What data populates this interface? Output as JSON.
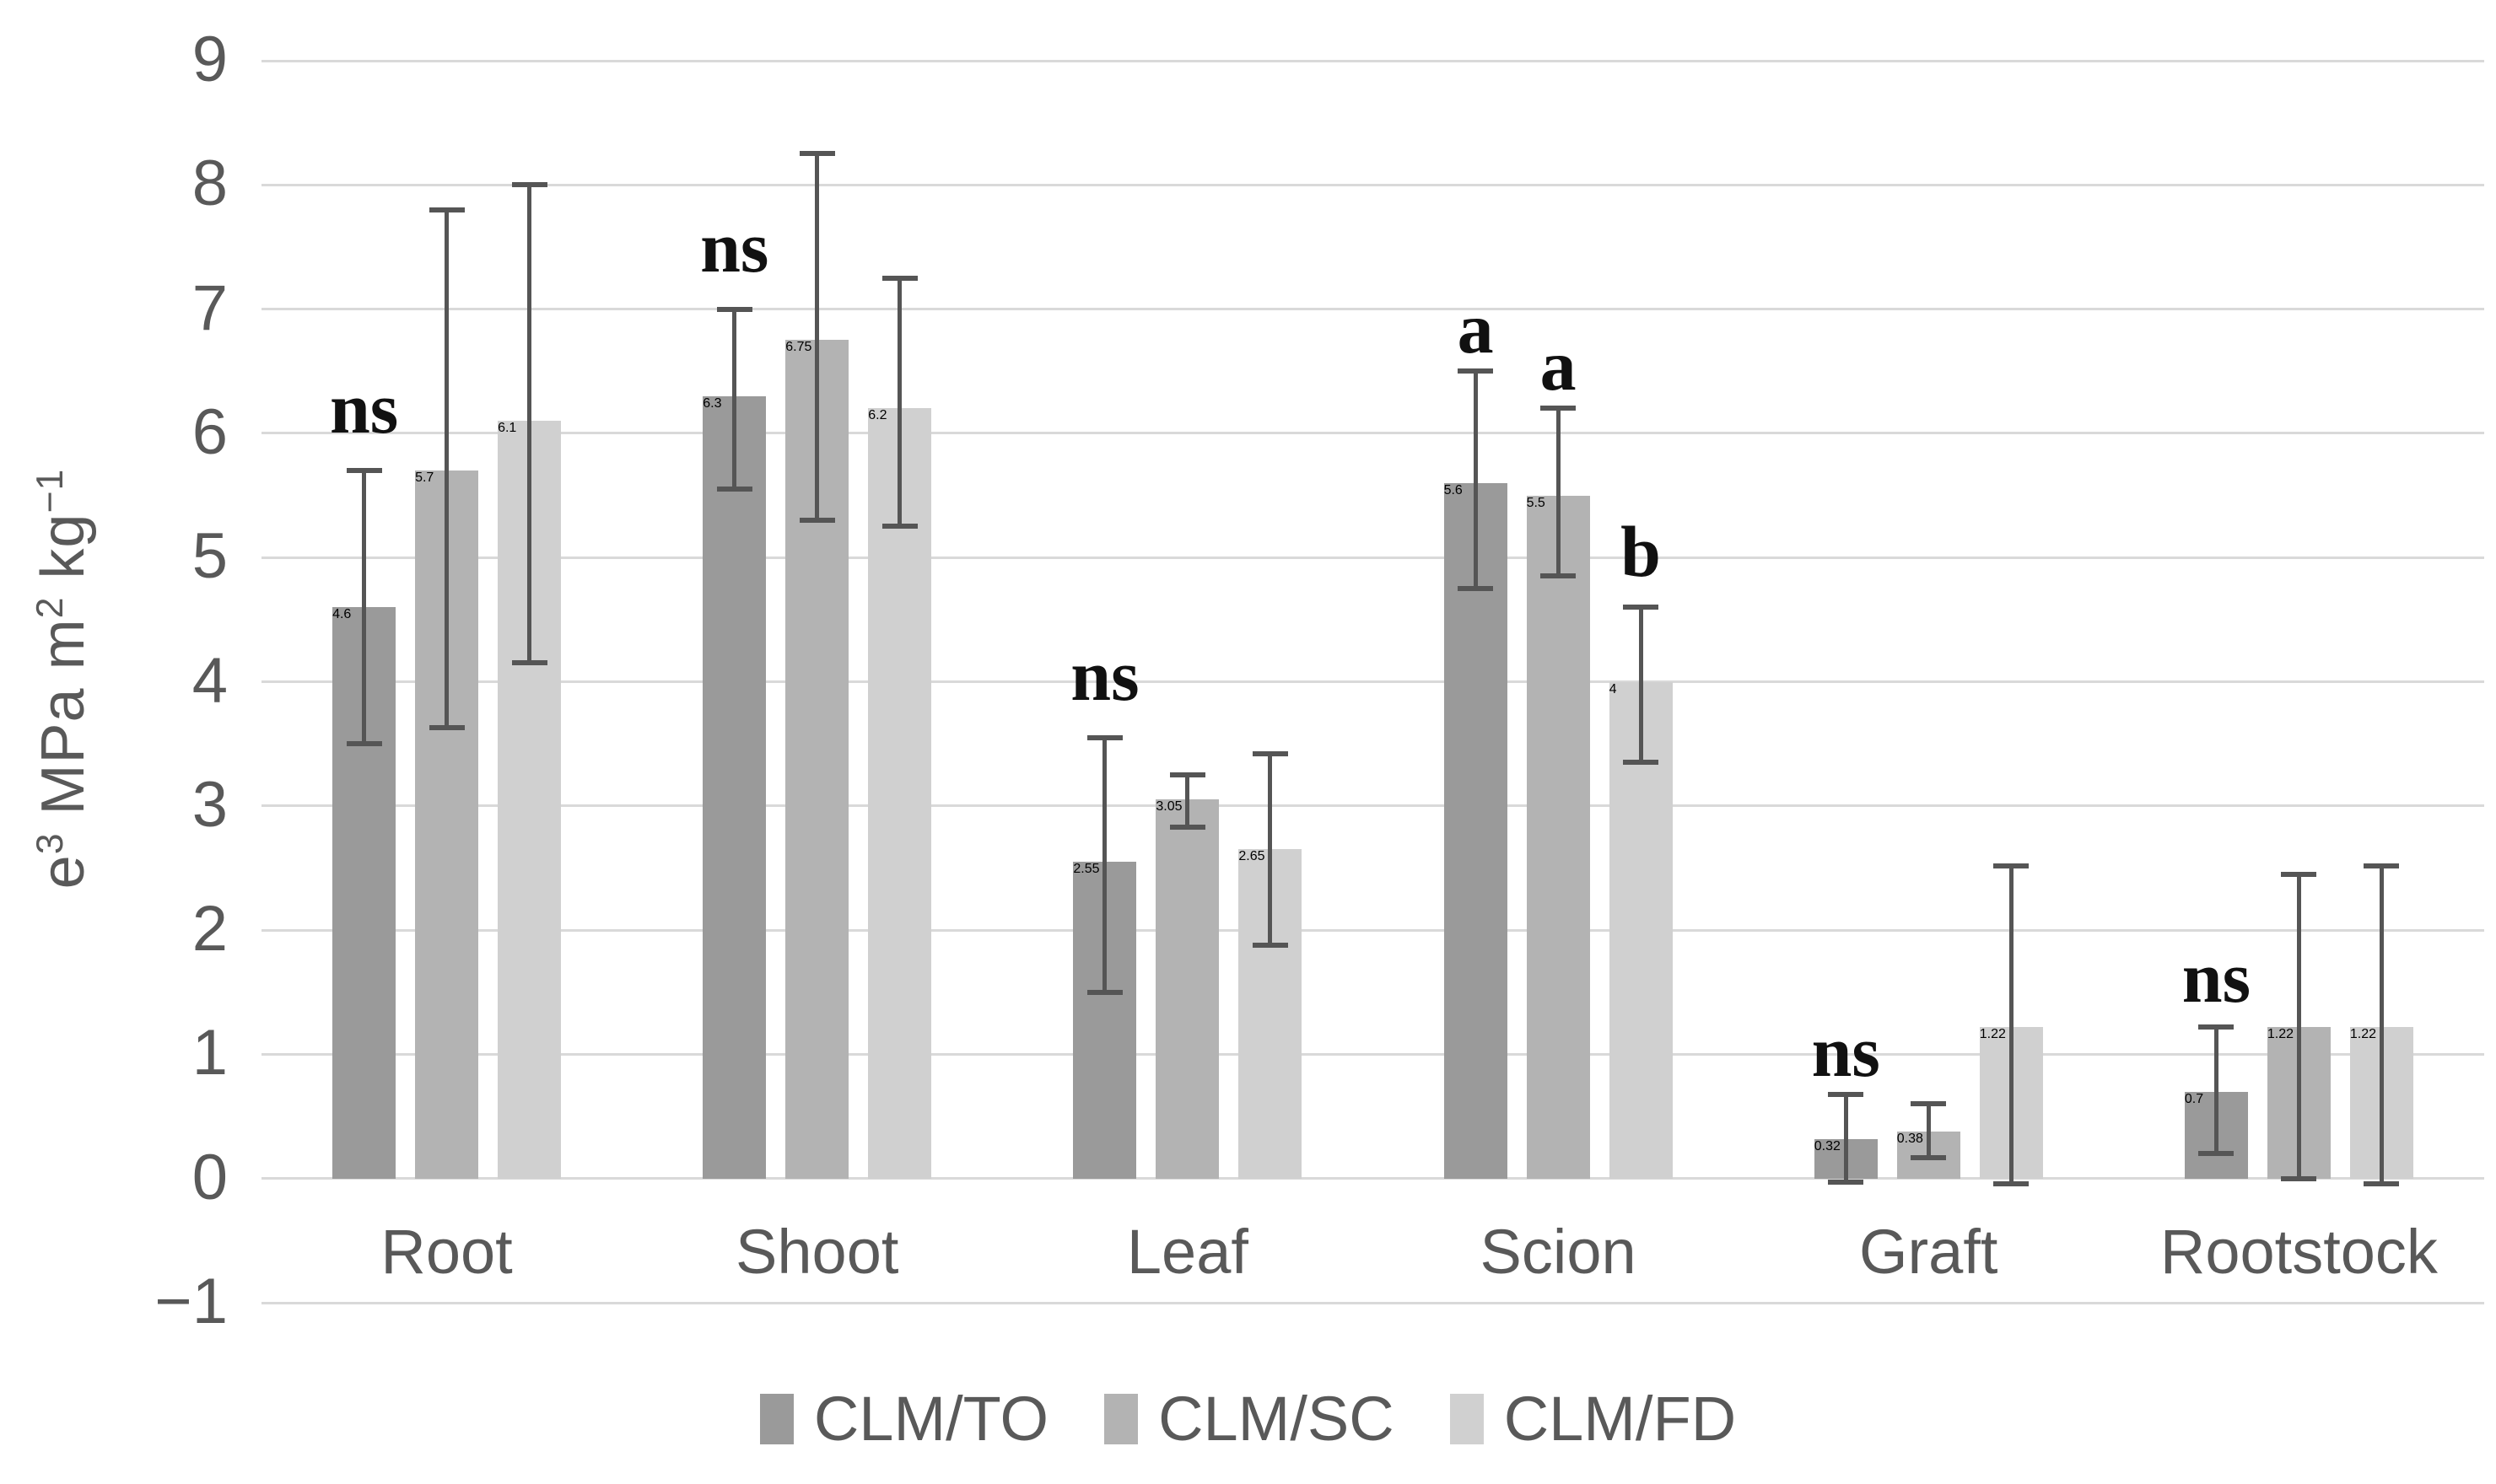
{
  "figure": {
    "background": "#ffffff",
    "grid_color": "#d9d9d9",
    "text_color": "#595959",
    "annotation_color": "#111111"
  },
  "y_axis": {
    "min": -1,
    "max": 9,
    "tick_step": 1,
    "ticks": [
      "9",
      "8",
      "7",
      "6",
      "5",
      "4",
      "3",
      "2",
      "1",
      "0",
      "−1"
    ],
    "title_segments": [
      "e",
      "3",
      " MPa m",
      "2",
      " kg",
      "−1"
    ]
  },
  "legend": {
    "items": [
      {
        "label": "CLM/TO",
        "color": "#9a9a9a"
      },
      {
        "label": "CLM/SC",
        "color": "#b3b3b3"
      },
      {
        "label": "CLM/FD",
        "color": "#d0d0d0"
      }
    ]
  },
  "chart_data": {
    "type": "bar",
    "title": "",
    "xlabel": "",
    "ylabel": "e3 MPa m2 kg-1",
    "ylim": [
      -1,
      9
    ],
    "grid": true,
    "legend_position": "bottom",
    "error_bar_color": "#555555",
    "categories": [
      "Root",
      "Shoot",
      "Leaf",
      "Scion",
      "Graft",
      "Rootstock"
    ],
    "series": [
      {
        "name": "CLM/TO",
        "color": "#9a9a9a",
        "values": [
          4.6,
          6.3,
          2.55,
          5.6,
          0.32,
          0.7
        ],
        "error_low": [
          3.5,
          5.55,
          1.5,
          4.75,
          -0.03,
          0.2
        ],
        "error_high": [
          5.7,
          7.0,
          3.55,
          6.5,
          0.68,
          1.22
        ]
      },
      {
        "name": "CLM/SC",
        "color": "#b3b3b3",
        "values": [
          5.7,
          6.75,
          3.05,
          5.5,
          0.38,
          1.22
        ],
        "error_low": [
          3.63,
          5.3,
          2.83,
          4.85,
          0.17,
          0.0
        ],
        "error_high": [
          7.8,
          8.25,
          3.25,
          6.2,
          0.6,
          2.45
        ]
      },
      {
        "name": "CLM/FD",
        "color": "#d0d0d0",
        "values": [
          6.1,
          6.2,
          2.65,
          4.0,
          1.22,
          1.22
        ],
        "error_low": [
          4.15,
          5.25,
          1.88,
          3.35,
          -0.04,
          -0.04
        ],
        "error_high": [
          8.0,
          7.25,
          3.42,
          4.6,
          2.52,
          2.52
        ]
      }
    ],
    "annotations": [
      {
        "category": "Root",
        "series": "CLM/TO",
        "text": "ns",
        "y": 6.2
      },
      {
        "category": "Shoot",
        "series": "CLM/TO",
        "text": "ns",
        "y": 7.5
      },
      {
        "category": "Leaf",
        "series": "CLM/TO",
        "text": "ns",
        "y": 4.05
      },
      {
        "category": "Scion",
        "series": "CLM/TO",
        "text": "a",
        "y": 6.85
      },
      {
        "category": "Scion",
        "series": "CLM/SC",
        "text": "a",
        "y": 6.55
      },
      {
        "category": "Scion",
        "series": "CLM/FD",
        "text": "b",
        "y": 5.05
      },
      {
        "category": "Graft",
        "series": "CLM/TO",
        "text": "ns",
        "y": 1.02
      },
      {
        "category": "Rootstock",
        "series": "CLM/TO",
        "text": "ns",
        "y": 1.62
      }
    ]
  }
}
